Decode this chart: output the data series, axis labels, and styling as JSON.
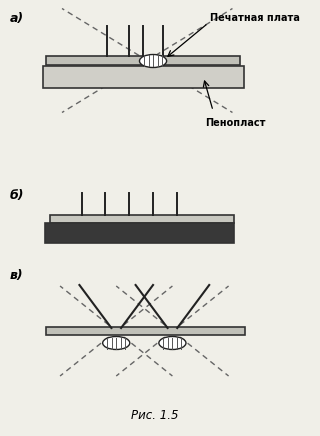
{
  "bg_color": "#f0efe8",
  "label_a": "а)",
  "label_b": "б)",
  "label_v": "в)",
  "label_pechplata": "Печатная плата",
  "label_penoplast": "Пенопласт",
  "label_ris": "Рис. 1.5"
}
